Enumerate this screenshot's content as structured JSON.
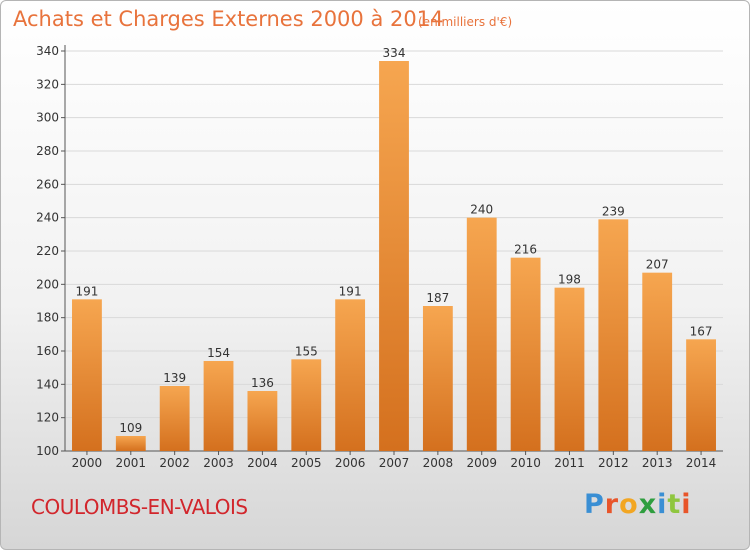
{
  "header": {
    "title": "Achats et Charges Externes 2000 à 2014",
    "unit": "(en milliers d'€)"
  },
  "footer": {
    "commune": "COULOMBS-EN-VALOIS",
    "logo_text": "Proxiti"
  },
  "colors": {
    "title": "#e8733c",
    "commune": "#d2262c",
    "bar_light": "#f6a650",
    "bar_dark": "#d4701e",
    "logo_letters": [
      "#3a8fd4",
      "#e8552a",
      "#f2a623",
      "#2f9e3f",
      "#3a8fd4",
      "#8fc63f",
      "#e8552a"
    ]
  },
  "chart_data": {
    "type": "bar",
    "categories": [
      "2000",
      "2001",
      "2002",
      "2003",
      "2004",
      "2005",
      "2006",
      "2007",
      "2008",
      "2009",
      "2010",
      "2011",
      "2012",
      "2013",
      "2014"
    ],
    "values": [
      191,
      109,
      139,
      154,
      136,
      155,
      191,
      334,
      187,
      240,
      216,
      198,
      239,
      207,
      167
    ],
    "ylim": [
      100,
      340
    ],
    "yticks": [
      100,
      120,
      140,
      160,
      180,
      200,
      220,
      240,
      260,
      280,
      300,
      320,
      340
    ],
    "grid": true,
    "legend": "none"
  }
}
